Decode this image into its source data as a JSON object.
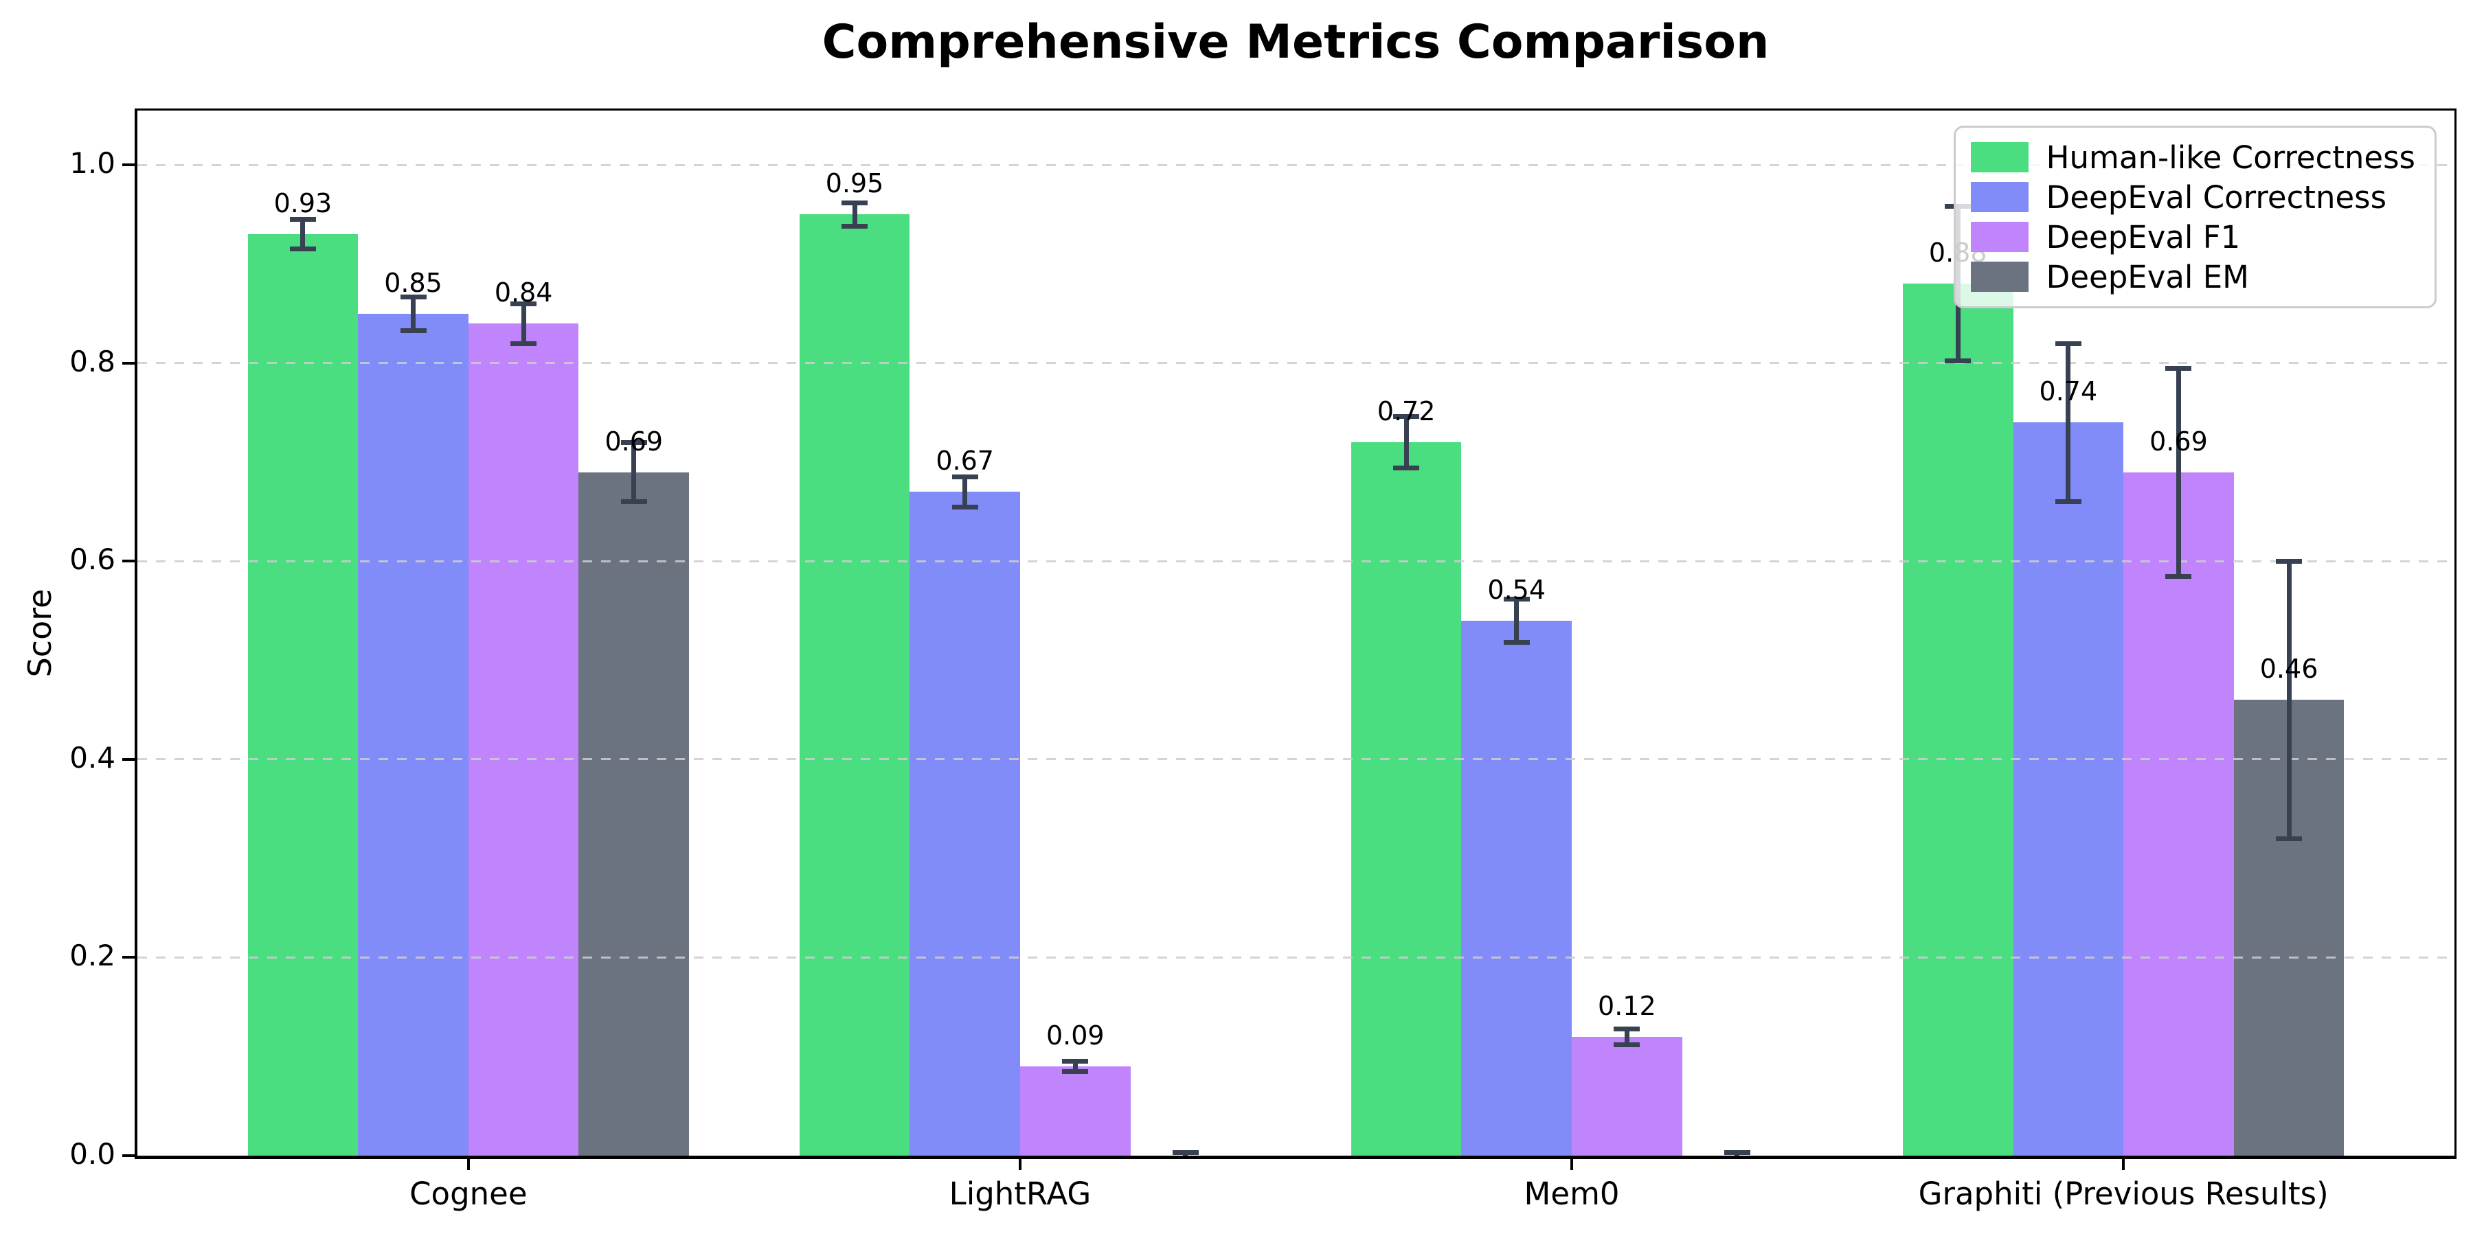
{
  "title": "Comprehensive Metrics Comparison",
  "axes": {
    "ylabel": "Score",
    "ytick_labels": [
      "0.0",
      "0.2",
      "0.4",
      "0.6",
      "0.8",
      "1.0"
    ]
  },
  "legend": {
    "position": "upper right",
    "entries": [
      {
        "label": "Human-like Correctness",
        "color": "#4ade80"
      },
      {
        "label": "DeepEval Correctness",
        "color": "#818cf8"
      },
      {
        "label": "DeepEval F1",
        "color": "#c084fc"
      },
      {
        "label": "DeepEval EM",
        "color": "#6b7280"
      }
    ]
  },
  "style_colors": {
    "error_bar": "#374151",
    "grid": "#cdcdcd",
    "axis": "#000000",
    "background": "#ffffff",
    "text": "#000000"
  },
  "chart_data": {
    "type": "bar",
    "title": "Comprehensive Metrics Comparison",
    "xlabel": "",
    "ylabel": "Score",
    "categories": [
      "Cognee",
      "LightRAG",
      "Mem0",
      "Graphiti (Previous Results)"
    ],
    "series": [
      {
        "name": "Human-like Correctness",
        "color": "#4ade80",
        "values": [
          0.93,
          0.95,
          0.72,
          0.88
        ],
        "errors": [
          0.015,
          0.012,
          0.026,
          0.078
        ]
      },
      {
        "name": "DeepEval Correctness",
        "color": "#818cf8",
        "values": [
          0.85,
          0.67,
          0.54,
          0.74
        ],
        "errors": [
          0.017,
          0.015,
          0.022,
          0.08
        ]
      },
      {
        "name": "DeepEval F1",
        "color": "#c084fc",
        "values": [
          0.84,
          0.09,
          0.12,
          0.69
        ],
        "errors": [
          0.02,
          0.005,
          0.008,
          0.105
        ]
      },
      {
        "name": "DeepEval EM",
        "color": "#6b7280",
        "values": [
          0.69,
          0.0,
          0.0,
          0.46
        ],
        "errors": [
          0.03,
          0.003,
          0.003,
          0.14
        ]
      }
    ],
    "bar_value_labels": [
      [
        "0.93",
        "0.95",
        "0.72",
        "0.88"
      ],
      [
        "0.85",
        "0.67",
        "0.54",
        "0.74"
      ],
      [
        "0.84",
        "0.09",
        "0.12",
        "0.69"
      ],
      [
        "0.69",
        "",
        "",
        "0.46"
      ]
    ],
    "yticks": [
      0.0,
      0.2,
      0.4,
      0.6,
      0.8,
      1.0
    ],
    "ylim": [
      0,
      1.055
    ],
    "bar_width": 0.2,
    "grid": "horizontal dashed",
    "legend_position": "upper right"
  }
}
